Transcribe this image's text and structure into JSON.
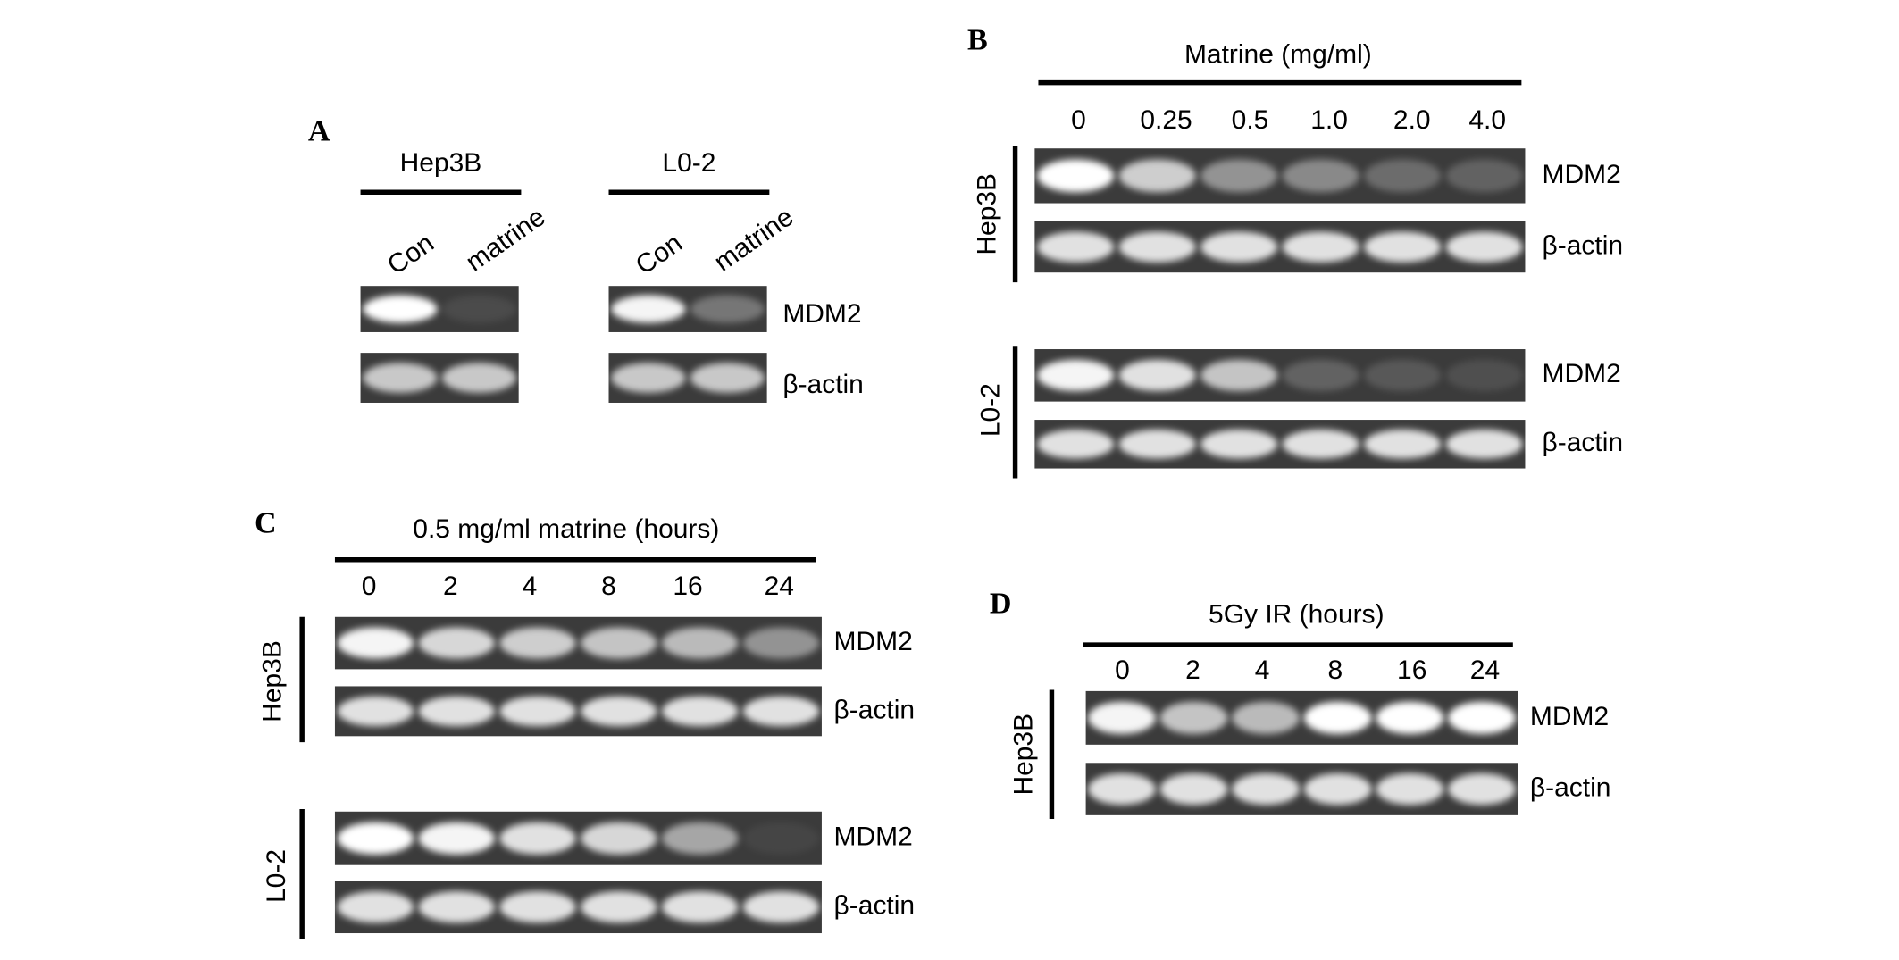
{
  "panel_a": {
    "label": "A",
    "rows": [
      "MDM2",
      "β-actin"
    ],
    "groups": [
      {
        "title": "Hep3B",
        "lanes": [
          "Con",
          "matrine"
        ]
      },
      {
        "title": "L0-2",
        "lanes": [
          "Con",
          "matrine"
        ]
      }
    ]
  },
  "panel_b": {
    "label": "B",
    "title": "Matrine (mg/ml)",
    "lanes": [
      "0",
      "0.25",
      "0.5",
      "1.0",
      "2.0",
      "4.0"
    ],
    "blots": [
      {
        "cell_line": "Hep3B",
        "rows": [
          "MDM2",
          "β-actin"
        ]
      },
      {
        "cell_line": "L0-2",
        "rows": [
          "MDM2",
          "β-actin"
        ]
      }
    ]
  },
  "panel_c": {
    "label": "C",
    "title": "0.5 mg/ml matrine (hours)",
    "lanes": [
      "0",
      "2",
      "4",
      "8",
      "16",
      "24"
    ],
    "blots": [
      {
        "cell_line": "Hep3B",
        "rows": [
          "MDM2",
          "β-actin"
        ]
      },
      {
        "cell_line": "L0-2",
        "rows": [
          "MDM2",
          "β-actin"
        ]
      }
    ]
  },
  "panel_d": {
    "label": "D",
    "title": "5Gy IR (hours)",
    "lanes": [
      "0",
      "2",
      "4",
      "8",
      "16",
      "24"
    ],
    "blots": [
      {
        "cell_line": "Hep3B",
        "rows": [
          "MDM2",
          "β-actin"
        ]
      }
    ]
  }
}
